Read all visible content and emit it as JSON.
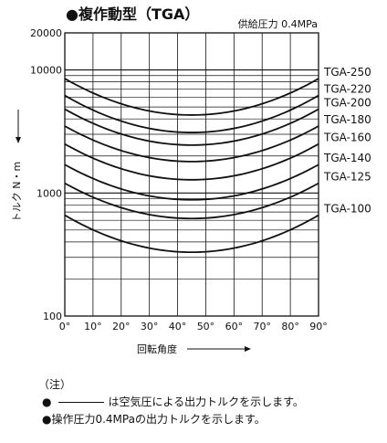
{
  "header": {
    "title": "●複作動型（TGA）",
    "condition": "供給圧力 0.4MPa"
  },
  "chart_data": {
    "type": "line",
    "title": "●複作動型（TGA）",
    "subtitle": "供給圧力 0.4MPa",
    "xlabel": "回転角度",
    "ylabel": "トルク N・m",
    "x_scale": "linear",
    "y_scale": "log",
    "xlim": [
      0,
      90
    ],
    "ylim": [
      100,
      20000
    ],
    "x_ticks": [
      0,
      10,
      20,
      30,
      40,
      50,
      60,
      70,
      80,
      90
    ],
    "x_tick_labels": [
      "0°",
      "10°",
      "20°",
      "30°",
      "40°",
      "50°",
      "60°",
      "70°",
      "80°",
      "90°"
    ],
    "y_tick_labels": [
      {
        "value": 100,
        "label": "100"
      },
      {
        "value": 1000,
        "label": "1000"
      },
      {
        "value": 10000,
        "label": "10000"
      },
      {
        "value": 20000,
        "label": "20000"
      }
    ],
    "grid": true,
    "series": [
      {
        "name": "TGA-250",
        "x": [
          0,
          45,
          90
        ],
        "y": [
          8500,
          4300,
          8500
        ]
      },
      {
        "name": "TGA-220",
        "x": [
          0,
          45,
          90
        ],
        "y": [
          6200,
          3100,
          6200
        ]
      },
      {
        "name": "TGA-200",
        "x": [
          0,
          45,
          90
        ],
        "y": [
          4800,
          2450,
          4800
        ]
      },
      {
        "name": "TGA-180",
        "x": [
          0,
          45,
          90
        ],
        "y": [
          3500,
          1800,
          3500
        ]
      },
      {
        "name": "TGA-160",
        "x": [
          0,
          45,
          90
        ],
        "y": [
          2500,
          1280,
          2500
        ]
      },
      {
        "name": "TGA-140",
        "x": [
          0,
          45,
          90
        ],
        "y": [
          1700,
          880,
          1700
        ]
      },
      {
        "name": "TGA-125",
        "x": [
          0,
          45,
          90
        ],
        "y": [
          1200,
          620,
          1200
        ]
      },
      {
        "name": "TGA-100",
        "x": [
          0,
          45,
          90
        ],
        "y": [
          660,
          330,
          660
        ]
      }
    ]
  },
  "notes": {
    "heading": "（注）",
    "line1": "●",
    "line1_text": "は空気圧による出力トルクを示します。",
    "line2": "●操作圧力0.4MPaの出力トルクを示します。"
  }
}
